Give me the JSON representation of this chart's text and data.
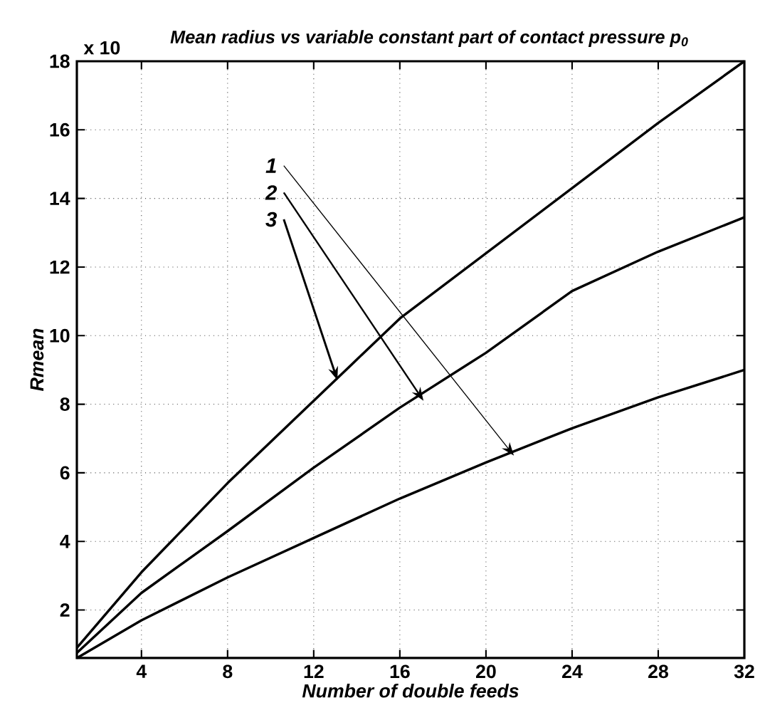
{
  "chart_data": {
    "type": "line",
    "title": "Mean radius vs variable constant part of contact pressure p$_{0}$",
    "xlabel": "Number of double feeds",
    "ylabel": "Rmean",
    "x": [
      1,
      4,
      8,
      12,
      16,
      20,
      24,
      28,
      32
    ],
    "series": [
      {
        "color": "#000000",
        "values": [
          0.9,
          3.1,
          5.7,
          8.1,
          10.5,
          12.4,
          14.3,
          16.2,
          18
        ]
      },
      {
        "color": "#000000",
        "values": [
          0.75,
          2.5,
          4.3,
          6.15,
          7.9,
          9.5,
          11.3,
          12.45,
          13.45
        ]
      },
      {
        "color": "#000000",
        "values": [
          0.6,
          1.7,
          2.95,
          4.1,
          5.25,
          6.3,
          7.3,
          8.2,
          9.0
        ]
      }
    ],
    "xlim": [
      1,
      32
    ],
    "ylim": [
      0.6,
      18
    ],
    "xticks": [
      4,
      8,
      12,
      16,
      20,
      24,
      28,
      32
    ],
    "yticks": [
      2,
      4,
      6,
      8,
      10,
      12,
      14,
      16,
      18
    ],
    "grid": true,
    "marker": "none",
    "line_style": "solid",
    "annotations": [
      {
        "text": "1",
        "x": 21.3,
        "y": 6.5
      },
      {
        "text": "2",
        "x": 17.1,
        "y": 8.1
      },
      {
        "text": "3",
        "x": 13.1,
        "y": 8.7
      },
      "x 10"
    ]
  }
}
